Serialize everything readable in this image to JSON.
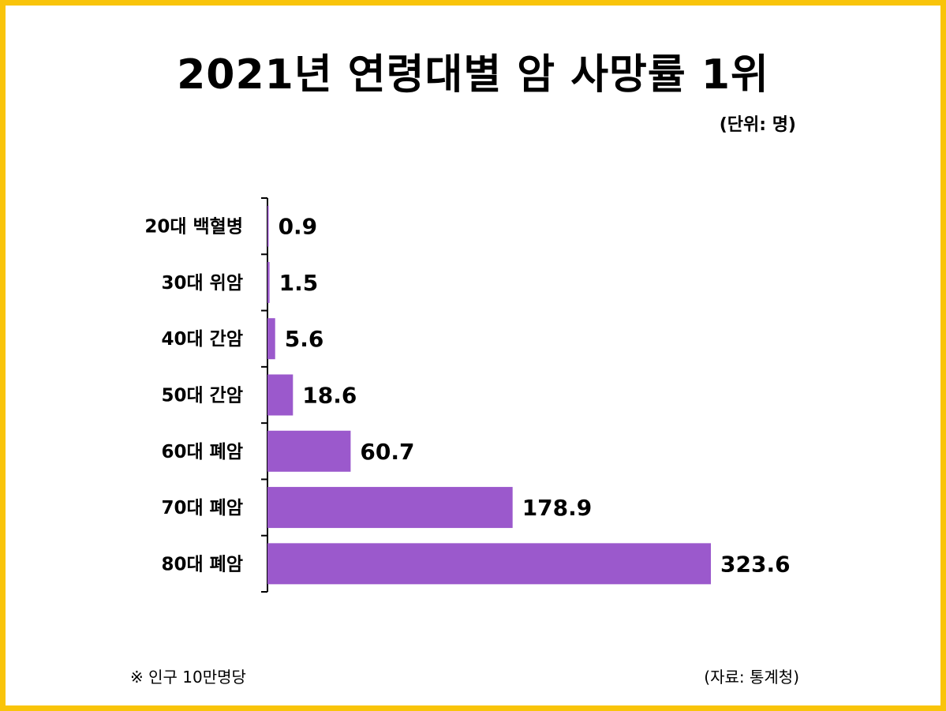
{
  "header": {
    "title": "2021년 연령대별 암 사망률 1위",
    "unit": "(단위: 명)"
  },
  "footer": {
    "note": "※ 인구 10만명당",
    "source": "(자료: 통계청)"
  },
  "colors": {
    "bar": "#9b59cc",
    "frame": "#f9c40a",
    "text": "#000000"
  },
  "chart_data": {
    "type": "bar",
    "orientation": "horizontal",
    "title": "2021년 연령대별 암 사망률 1위",
    "categories": [
      "20대 백혈병",
      "30대 위암",
      "40대 간암",
      "50대 간암",
      "60대 폐암",
      "70대 폐암",
      "80대 폐암"
    ],
    "values": [
      0.9,
      1.5,
      5.6,
      18.6,
      60.7,
      178.9,
      323.6
    ],
    "value_labels": [
      "0.9",
      "1.5",
      "5.6",
      "18.6",
      "60.7",
      "178.9",
      "323.6"
    ],
    "xlim": [
      0,
      323.6
    ],
    "grid": false,
    "legend": "none"
  }
}
